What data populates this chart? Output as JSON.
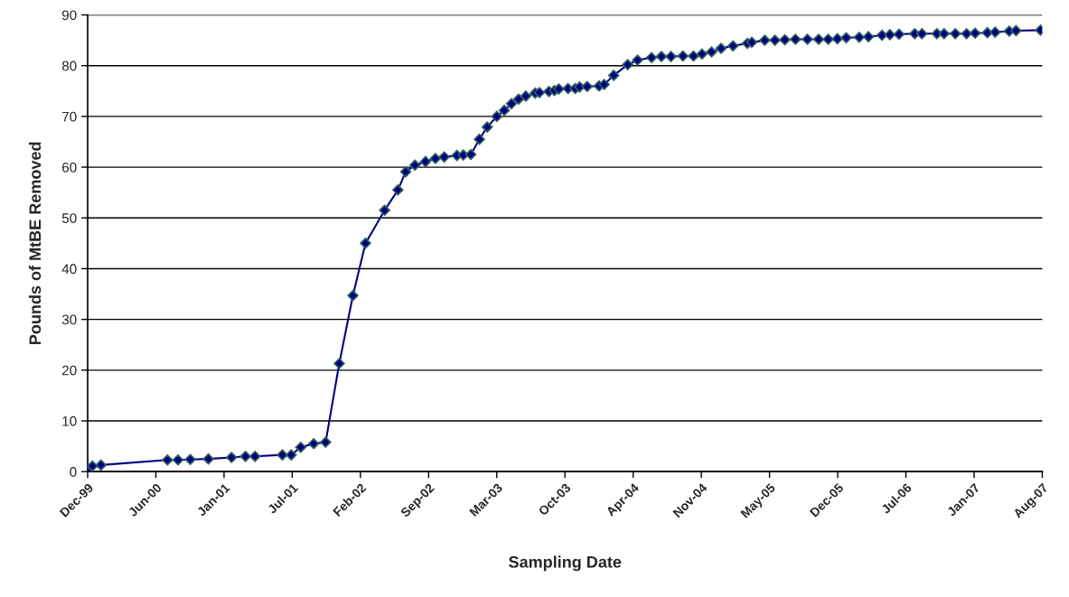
{
  "chart_data": {
    "type": "line",
    "xlabel": "Sampling Date",
    "ylabel": "Pounds of MtBE Removed",
    "x": [
      "1999-12-07",
      "1999-12-21",
      "2000-01-15",
      "2000-07-28",
      "2000-08-28",
      "2000-10-03",
      "2000-11-25",
      "2001-02-01",
      "2001-03-14",
      "2001-04-11",
      "2001-06-30",
      "2001-07-26",
      "2001-08-23",
      "2001-09-30",
      "2001-11-04",
      "2001-12-14",
      "2002-01-23",
      "2002-03-01",
      "2002-04-26",
      "2002-06-04",
      "2002-06-27",
      "2002-07-24",
      "2002-08-24",
      "2002-09-22",
      "2002-10-18",
      "2002-11-24",
      "2002-12-13",
      "2003-01-04",
      "2003-01-29",
      "2003-02-21",
      "2003-03-21",
      "2003-04-12",
      "2003-05-03",
      "2003-05-24",
      "2003-06-14",
      "2003-07-12",
      "2003-07-24",
      "2003-08-21",
      "2003-09-06",
      "2003-09-19",
      "2003-10-16",
      "2003-11-06",
      "2003-11-19",
      "2003-12-11",
      "2004-01-15",
      "2004-01-30",
      "2004-02-27",
      "2004-04-08",
      "2004-05-07",
      "2004-06-17",
      "2004-07-16",
      "2004-08-13",
      "2004-09-17",
      "2004-10-18",
      "2004-11-12",
      "2004-12-10",
      "2005-01-07",
      "2005-02-11",
      "2005-03-25",
      "2005-04-07",
      "2005-05-15",
      "2005-06-14",
      "2005-07-13",
      "2005-08-13",
      "2005-09-17",
      "2005-10-20",
      "2005-11-17",
      "2005-12-14",
      "2006-01-09",
      "2006-02-16",
      "2006-03-15",
      "2006-04-24",
      "2006-05-17",
      "2006-06-13",
      "2006-07-29",
      "2006-08-19",
      "2006-10-02",
      "2006-10-23",
      "2006-11-25",
      "2006-12-28",
      "2007-01-22",
      "2007-02-27",
      "2007-03-22",
      "2007-05-02",
      "2007-05-22",
      "2007-08-02"
    ],
    "series": [
      {
        "color": "#000080",
        "values": [
          0,
          1.1,
          1.3,
          2.3,
          2.3,
          2.4,
          2.5,
          2.8,
          3.0,
          3.0,
          3.3,
          3.3,
          4.8,
          5.5,
          5.8,
          21.3,
          34.7,
          45.0,
          51.5,
          55.5,
          59.1,
          60.4,
          61.1,
          61.7,
          62.0,
          62.3,
          62.4,
          62.5,
          65.5,
          67.9,
          70.0,
          71.2,
          72.5,
          73.4,
          74.0,
          74.6,
          74.7,
          74.9,
          75.1,
          75.4,
          75.5,
          75.5,
          75.8,
          75.9,
          76.0,
          76.3,
          78.1,
          80.2,
          81.1,
          81.6,
          81.8,
          81.8,
          81.9,
          81.9,
          82.3,
          82.7,
          83.4,
          83.9,
          84.4,
          84.6,
          85.0,
          85.0,
          85.1,
          85.2,
          85.2,
          85.2,
          85.2,
          85.3,
          85.5,
          85.6,
          85.7,
          86.0,
          86.1,
          86.2,
          86.3,
          86.3,
          86.3,
          86.3,
          86.3,
          86.3,
          86.4,
          86.5,
          86.6,
          86.8,
          86.9,
          87.0
        ]
      }
    ],
    "xlim": [
      "1999-12-07",
      "2007-08-07"
    ],
    "xticks": [
      {
        "value": "1999-12-07",
        "label": "Dec-99"
      },
      {
        "value": "2000-06-24",
        "label": "Jun-00"
      },
      {
        "value": "2001-01-10",
        "label": "Jan-01"
      },
      {
        "value": "2001-07-29",
        "label": "Jul-01"
      },
      {
        "value": "2002-02-14",
        "label": "Feb-02"
      },
      {
        "value": "2002-09-02",
        "label": "Sep-02"
      },
      {
        "value": "2003-03-21",
        "label": "Mar-03"
      },
      {
        "value": "2003-10-07",
        "label": "Oct-03"
      },
      {
        "value": "2004-04-24",
        "label": "Apr-04"
      },
      {
        "value": "2004-11-10",
        "label": "Nov-04"
      },
      {
        "value": "2005-05-29",
        "label": "May-05"
      },
      {
        "value": "2005-12-15",
        "label": "Dec-05"
      },
      {
        "value": "2006-07-03",
        "label": "Jul-06"
      },
      {
        "value": "2007-01-19",
        "label": "Jan-07"
      },
      {
        "value": "2007-08-07",
        "label": "Aug-07"
      }
    ],
    "ylim": [
      0,
      90
    ],
    "yticks": [
      0,
      10,
      20,
      30,
      40,
      50,
      60,
      70,
      80,
      90
    ],
    "grid": "y",
    "legend": false,
    "marker": "diamond",
    "line_style": "solid"
  }
}
